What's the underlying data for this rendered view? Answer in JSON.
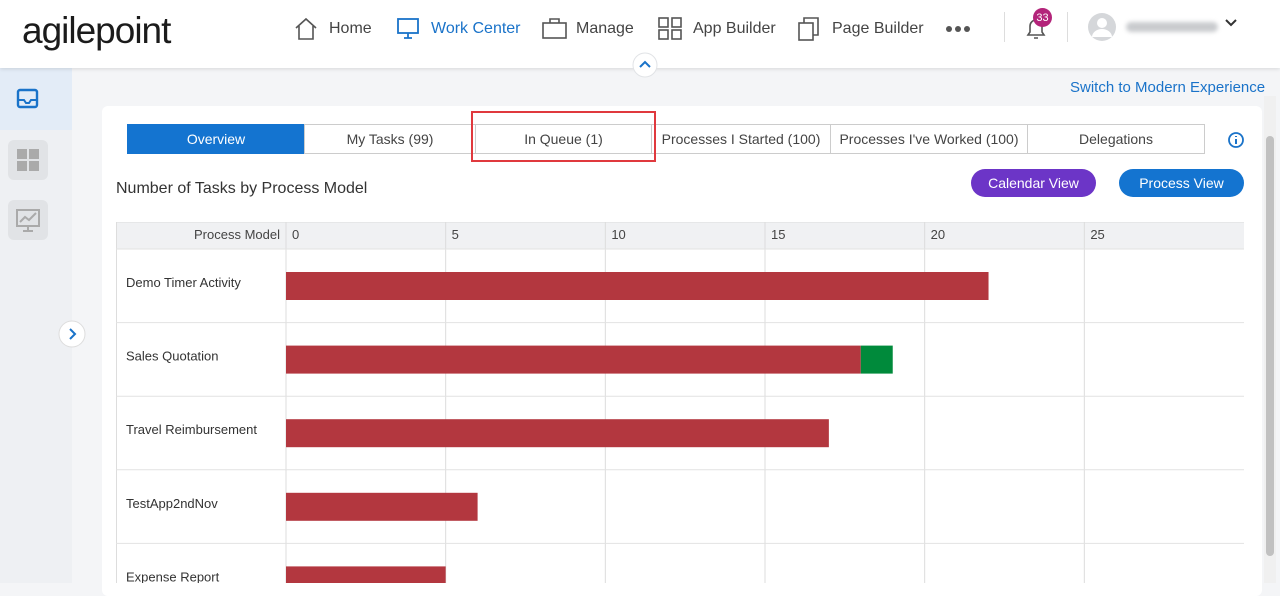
{
  "header": {
    "logo": "agilepoint",
    "nav": [
      "Home",
      "Work Center",
      "Manage",
      "App Builder",
      "Page Builder"
    ],
    "notification_count": "33"
  },
  "switch_link": "Switch to Modern Experience",
  "tabs": [
    "Overview",
    "My Tasks (99)",
    "In Queue (1)",
    "Processes I Started (100)",
    "Processes I've Worked (100)",
    "Delegations"
  ],
  "buttons": [
    "Calendar View",
    "Process View"
  ],
  "chart_data": {
    "type": "bar",
    "title": "Number of Tasks by Process Model",
    "category_header": "Process Model",
    "categories": [
      "Demo Timer Activity",
      "Sales Quotation",
      "Travel Reimbursement",
      "TestApp2ndNov",
      "Expense Report"
    ],
    "series": [
      {
        "color": "#b3373f",
        "values": [
          22,
          18,
          17,
          6,
          5
        ]
      },
      {
        "color": "#008a3b",
        "values": [
          0,
          1,
          0,
          0,
          0
        ]
      }
    ],
    "xlim": [
      0,
      30
    ],
    "xticks": [
      0,
      5,
      10,
      15,
      20,
      25
    ],
    "grid": true,
    "stacked": true
  }
}
